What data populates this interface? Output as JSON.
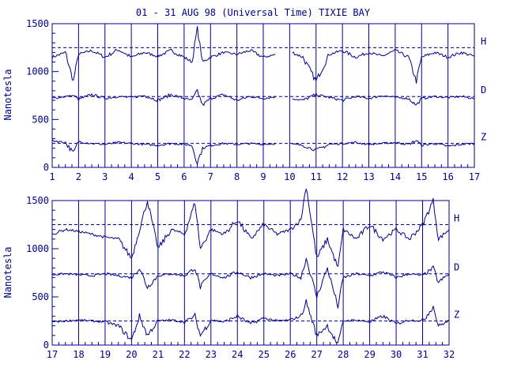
{
  "title": "01 - 31 AUG 98 (Universal Time) TIXIE BAY",
  "ylabel": "Nanotesla",
  "colors": {
    "ink": "#00008b",
    "background": "#ffffff"
  },
  "chart_data": [
    {
      "type": "line",
      "panel": "top",
      "x_tick_labels": [
        "1",
        "2",
        "3",
        "4",
        "5",
        "6",
        "7",
        "8",
        "9",
        "10",
        "11",
        "12",
        "13",
        "14",
        "15",
        "16",
        "17"
      ],
      "xlim": [
        1,
        17
      ],
      "ylim": [
        0,
        1500
      ],
      "y_tick_labels": [
        "0",
        "500",
        "1000",
        "1500"
      ],
      "y_ticks": [
        0,
        500,
        1000,
        1500
      ],
      "grid": "vertical at each day",
      "data_gaps": [
        [
          9.5,
          10.1
        ]
      ],
      "baselines": [
        {
          "name": "H",
          "value": 1250
        },
        {
          "name": "D",
          "value": 740
        },
        {
          "name": "Z",
          "value": 250
        }
      ],
      "series": [
        {
          "name": "H",
          "x": [
            1,
            1.5,
            1.8,
            2,
            2.5,
            3,
            3.5,
            4,
            4.5,
            5,
            5.5,
            6,
            6.3,
            6.5,
            6.7,
            7,
            7.5,
            8,
            8.5,
            9,
            9.5,
            10.1,
            10.5,
            11,
            11.5,
            12,
            12.5,
            13,
            13.5,
            14,
            14.5,
            14.8,
            15,
            15.5,
            16,
            16.5,
            17
          ],
          "y": [
            1150,
            1200,
            900,
            1180,
            1220,
            1150,
            1230,
            1150,
            1200,
            1160,
            1220,
            1150,
            1100,
            1450,
            1100,
            1150,
            1200,
            1180,
            1220,
            1150,
            1180,
            1200,
            1150,
            900,
            1180,
            1220,
            1150,
            1200,
            1160,
            1220,
            1150,
            900,
            1150,
            1200,
            1150,
            1200,
            1160
          ]
        },
        {
          "name": "D",
          "x": [
            1,
            1.5,
            1.8,
            2,
            2.5,
            3,
            3.5,
            4,
            4.5,
            5,
            5.5,
            6,
            6.3,
            6.5,
            6.7,
            7,
            7.5,
            8,
            8.5,
            9,
            9.5,
            10.1,
            10.5,
            11,
            11.5,
            12,
            12.5,
            13,
            13.5,
            14,
            14.5,
            14.8,
            15,
            15.5,
            16,
            16.5,
            17
          ],
          "y": [
            720,
            740,
            750,
            710,
            760,
            720,
            740,
            730,
            750,
            700,
            760,
            720,
            700,
            800,
            650,
            720,
            760,
            700,
            740,
            720,
            740,
            720,
            700,
            760,
            730,
            700,
            740,
            720,
            750,
            730,
            720,
            650,
            720,
            740,
            730,
            740,
            720
          ]
        },
        {
          "name": "Z",
          "x": [
            1,
            1.5,
            1.8,
            2,
            2.5,
            3,
            3.5,
            4,
            4.5,
            5,
            5.5,
            6,
            6.3,
            6.5,
            6.7,
            7,
            7.5,
            8,
            8.5,
            9,
            9.5,
            10.1,
            10.5,
            11,
            11.5,
            12,
            12.5,
            13,
            13.5,
            14,
            14.5,
            14.8,
            15,
            15.5,
            16,
            16.5,
            17
          ],
          "y": [
            280,
            260,
            150,
            270,
            250,
            240,
            260,
            250,
            240,
            230,
            250,
            240,
            230,
            50,
            200,
            230,
            250,
            240,
            250,
            240,
            250,
            240,
            230,
            180,
            240,
            250,
            260,
            240,
            250,
            260,
            240,
            280,
            230,
            250,
            220,
            240,
            250
          ]
        }
      ],
      "trace_labels": [
        "H",
        "D",
        "Z"
      ]
    },
    {
      "type": "line",
      "panel": "bottom",
      "x_tick_labels": [
        "17",
        "18",
        "19",
        "20",
        "21",
        "22",
        "23",
        "24",
        "25",
        "26",
        "27",
        "28",
        "29",
        "30",
        "31",
        "32"
      ],
      "xlim": [
        17,
        32
      ],
      "ylim": [
        0,
        1500
      ],
      "y_tick_labels": [
        "0",
        "500",
        "1000",
        "1500"
      ],
      "y_ticks": [
        0,
        500,
        1000,
        1500
      ],
      "grid": "vertical at each day",
      "baselines": [
        {
          "name": "H",
          "value": 1250
        },
        {
          "name": "D",
          "value": 740
        },
        {
          "name": "Z",
          "value": 250
        }
      ],
      "series": [
        {
          "name": "H",
          "x": [
            17,
            17.5,
            18,
            18.5,
            19,
            19.5,
            20,
            20.3,
            20.6,
            21,
            21.5,
            22,
            22.4,
            22.6,
            23,
            23.5,
            24,
            24.5,
            25,
            25.5,
            26,
            26.4,
            26.6,
            27,
            27.4,
            27.8,
            28,
            28.5,
            29,
            29.5,
            30,
            30.5,
            31,
            31.4,
            31.6,
            32
          ],
          "y": [
            1150,
            1200,
            1180,
            1150,
            1120,
            1100,
            900,
            1200,
            1500,
            1000,
            1200,
            1150,
            1480,
            1000,
            1200,
            1150,
            1300,
            1100,
            1250,
            1150,
            1200,
            1300,
            1650,
            900,
            1100,
            800,
            1200,
            1100,
            1250,
            1100,
            1200,
            1100,
            1250,
            1500,
            1100,
            1200
          ]
        },
        {
          "name": "D",
          "x": [
            17,
            17.5,
            18,
            18.5,
            19,
            19.5,
            20,
            20.3,
            20.6,
            21,
            21.5,
            22,
            22.4,
            22.6,
            23,
            23.5,
            24,
            24.5,
            25,
            25.5,
            26,
            26.4,
            26.6,
            27,
            27.4,
            27.8,
            28,
            28.5,
            29,
            29.5,
            30,
            30.5,
            31,
            31.4,
            31.6,
            32
          ],
          "y": [
            730,
            740,
            730,
            720,
            740,
            720,
            700,
            800,
            600,
            720,
            740,
            720,
            800,
            600,
            740,
            700,
            760,
            700,
            740,
            720,
            740,
            700,
            900,
            500,
            800,
            400,
            700,
            740,
            720,
            760,
            700,
            740,
            720,
            800,
            650,
            740
          ]
        },
        {
          "name": "Z",
          "x": [
            17,
            17.5,
            18,
            18.5,
            19,
            19.5,
            20,
            20.3,
            20.6,
            21,
            21.5,
            22,
            22.4,
            22.6,
            23,
            23.5,
            24,
            24.5,
            25,
            25.5,
            26,
            26.4,
            26.6,
            27,
            27.4,
            27.8,
            28,
            28.5,
            29,
            29.5,
            30,
            30.5,
            31,
            31.4,
            31.6,
            32
          ],
          "y": [
            240,
            250,
            260,
            250,
            240,
            200,
            50,
            300,
            100,
            250,
            260,
            240,
            300,
            100,
            260,
            240,
            300,
            220,
            280,
            250,
            260,
            300,
            450,
            100,
            200,
            0,
            250,
            260,
            240,
            300,
            220,
            260,
            250,
            400,
            200,
            250
          ]
        }
      ],
      "trace_labels": [
        "H",
        "D",
        "Z"
      ]
    }
  ]
}
